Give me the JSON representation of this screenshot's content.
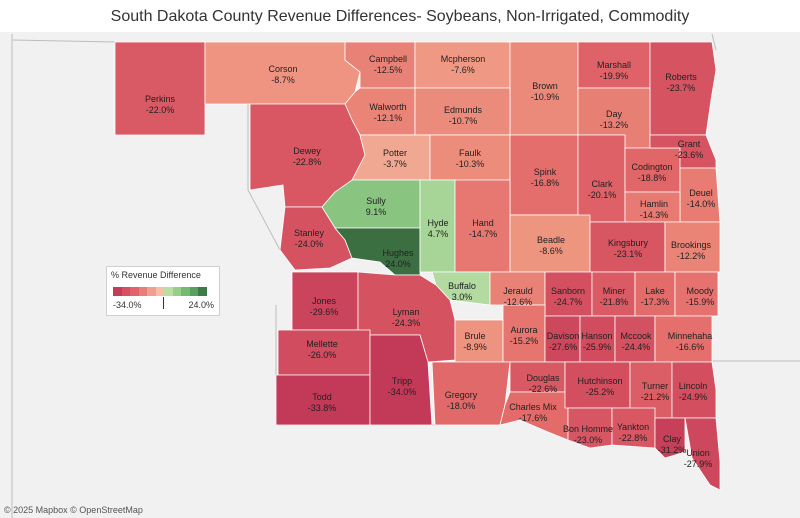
{
  "title": "South Dakota County Revenue Differences- Soybeans, Non-Irrigated, Commodity",
  "attribution": "© 2025 Mapbox  © OpenStreetMap",
  "legend": {
    "title": "% Revenue Difference",
    "min_label": "-34.0%",
    "max_label": "24.0%",
    "min": -34.0,
    "max": 24.0,
    "colors": [
      "#c43c56",
      "#d75061",
      "#e0626a",
      "#e87e7a",
      "#f0a08f",
      "#f6bfa6",
      "#b9dfa5",
      "#95cf88",
      "#74ba71",
      "#5a9f5e",
      "#3e7b46"
    ]
  },
  "map_data": {
    "type": "choropleth",
    "region": "South Dakota",
    "counties": [
      {
        "name": "Perkins",
        "value": -22.0,
        "label": "-22.0%"
      },
      {
        "name": "Corson",
        "value": -8.7,
        "label": "-8.7%"
      },
      {
        "name": "Campbell",
        "value": -12.5,
        "label": "-12.5%"
      },
      {
        "name": "Mcpherson",
        "value": -7.6,
        "label": "-7.6%"
      },
      {
        "name": "Brown",
        "value": -10.9,
        "label": "-10.9%"
      },
      {
        "name": "Marshall",
        "value": -19.9,
        "label": "-19.9%"
      },
      {
        "name": "Roberts",
        "value": -23.7,
        "label": "-23.7%"
      },
      {
        "name": "Walworth",
        "value": -12.1,
        "label": "-12.1%"
      },
      {
        "name": "Edmunds",
        "value": -10.7,
        "label": "-10.7%"
      },
      {
        "name": "Day",
        "value": -13.2,
        "label": "-13.2%"
      },
      {
        "name": "Dewey",
        "value": -22.8,
        "label": "-22.8%"
      },
      {
        "name": "Potter",
        "value": -3.7,
        "label": "-3.7%"
      },
      {
        "name": "Faulk",
        "value": -10.3,
        "label": "-10.3%"
      },
      {
        "name": "Spink",
        "value": -16.8,
        "label": "-16.8%"
      },
      {
        "name": "Clark",
        "value": -20.1,
        "label": "-20.1%"
      },
      {
        "name": "Codington",
        "value": -18.8,
        "label": "-18.8%"
      },
      {
        "name": "Grant",
        "value": -23.6,
        "label": "-23.6%"
      },
      {
        "name": "Deuel",
        "value": -14.0,
        "label": "-14.0%"
      },
      {
        "name": "Hamlin",
        "value": -14.3,
        "label": "-14.3%"
      },
      {
        "name": "Sully",
        "value": 9.1,
        "label": "9.1%"
      },
      {
        "name": "Stanley",
        "value": -24.0,
        "label": "-24.0%"
      },
      {
        "name": "Hughes",
        "value": 24.0,
        "label": "24.0%"
      },
      {
        "name": "Hyde",
        "value": 4.7,
        "label": "4.7%"
      },
      {
        "name": "Hand",
        "value": -14.7,
        "label": "-14.7%"
      },
      {
        "name": "Beadle",
        "value": -8.6,
        "label": "-8.6%"
      },
      {
        "name": "Kingsbury",
        "value": -23.1,
        "label": "-23.1%"
      },
      {
        "name": "Brookings",
        "value": -12.2,
        "label": "-12.2%"
      },
      {
        "name": "Buffalo",
        "value": 3.0,
        "label": "3.0%"
      },
      {
        "name": "Jerauld",
        "value": -12.6,
        "label": "-12.6%"
      },
      {
        "name": "Sanborn",
        "value": -24.7,
        "label": "-24.7%"
      },
      {
        "name": "Miner",
        "value": -21.8,
        "label": "-21.8%"
      },
      {
        "name": "Lake",
        "value": -17.3,
        "label": "-17.3%"
      },
      {
        "name": "Moody",
        "value": -15.9,
        "label": "-15.9%"
      },
      {
        "name": "Jones",
        "value": -29.6,
        "label": "-29.6%"
      },
      {
        "name": "Lyman",
        "value": -24.3,
        "label": "-24.3%"
      },
      {
        "name": "Brule",
        "value": -8.9,
        "label": "-8.9%"
      },
      {
        "name": "Aurora",
        "value": -15.2,
        "label": "-15.2%"
      },
      {
        "name": "Davison",
        "value": -27.6,
        "label": "-27.6%"
      },
      {
        "name": "Hanson",
        "value": -25.9,
        "label": "-25.9%"
      },
      {
        "name": "Mccook",
        "value": -24.4,
        "label": "-24.4%"
      },
      {
        "name": "Minnehaha",
        "value": -16.6,
        "label": "-16.6%"
      },
      {
        "name": "Mellette",
        "value": -26.0,
        "label": "-26.0%"
      },
      {
        "name": "Todd",
        "value": -33.8,
        "label": "-33.8%"
      },
      {
        "name": "Tripp",
        "value": -34.0,
        "label": "-34.0%"
      },
      {
        "name": "Gregory",
        "value": -18.0,
        "label": "-18.0%"
      },
      {
        "name": "Douglas",
        "value": -22.6,
        "label": "-22.6%"
      },
      {
        "name": "Charles Mix",
        "value": -17.6,
        "label": "-17.6%"
      },
      {
        "name": "Hutchinson",
        "value": -25.2,
        "label": "-25.2%"
      },
      {
        "name": "Turner",
        "value": -21.2,
        "label": "-21.2%"
      },
      {
        "name": "Lincoln",
        "value": -24.9,
        "label": "-24.9%"
      },
      {
        "name": "Bon Homme",
        "value": -23.0,
        "label": "-23.0%"
      },
      {
        "name": "Yankton",
        "value": -22.8,
        "label": "-22.8%"
      },
      {
        "name": "Clay",
        "value": -31.2,
        "label": "-31.2%"
      },
      {
        "name": "Union",
        "value": -27.9,
        "label": "-27.9%"
      }
    ]
  }
}
